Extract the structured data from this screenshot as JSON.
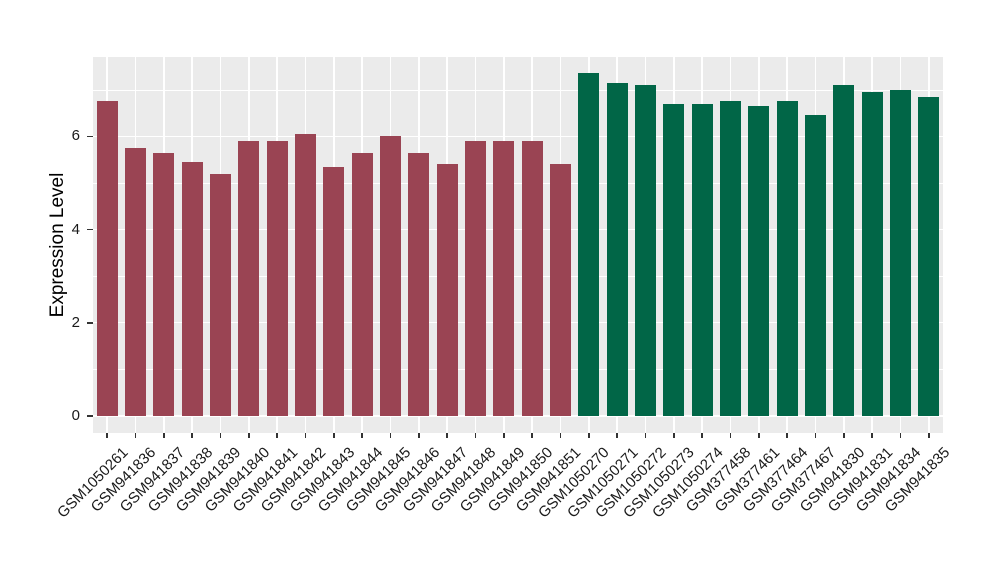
{
  "chart_data": {
    "type": "bar",
    "title": "",
    "xlabel": "",
    "ylabel": "Expression Level",
    "yticks": [
      0,
      2,
      4,
      6
    ],
    "yticks_minor": [
      1,
      3,
      5,
      7
    ],
    "ylim": [
      0,
      7.7
    ],
    "grid": "white major and minor gridlines on gray panel",
    "legend": "none",
    "panel_bg": "#EBEBEB",
    "grid_color": "#FFFFFF",
    "axis_text_color": "#1A1A1A",
    "tick_mark_color": "#333333",
    "series": [
      {
        "color": "#9A4453",
        "categories": [
          "GSM1050261",
          "GSM941836",
          "GSM941837",
          "GSM941838",
          "GSM941839",
          "GSM941840",
          "GSM941841",
          "GSM941842",
          "GSM941843",
          "GSM941844",
          "GSM941845",
          "GSM941846",
          "GSM941847",
          "GSM941848",
          "GSM941849",
          "GSM941850",
          "GSM941851"
        ],
        "values": [
          6.75,
          5.75,
          5.65,
          5.45,
          5.2,
          5.9,
          5.9,
          6.05,
          5.35,
          5.65,
          6.0,
          5.65,
          5.4,
          5.9,
          5.9,
          5.9,
          5.4
        ]
      },
      {
        "color": "#016647",
        "categories": [
          "GSM1050270",
          "GSM1050271",
          "GSM1050272",
          "GSM1050273",
          "GSM1050274",
          "GSM377458",
          "GSM377461",
          "GSM377464",
          "GSM377467",
          "GSM941830",
          "GSM941831",
          "GSM941834",
          "GSM941835"
        ],
        "values": [
          7.35,
          7.15,
          7.1,
          6.7,
          6.7,
          6.75,
          6.65,
          6.75,
          6.45,
          7.1,
          6.95,
          7.0,
          6.85
        ]
      }
    ]
  }
}
